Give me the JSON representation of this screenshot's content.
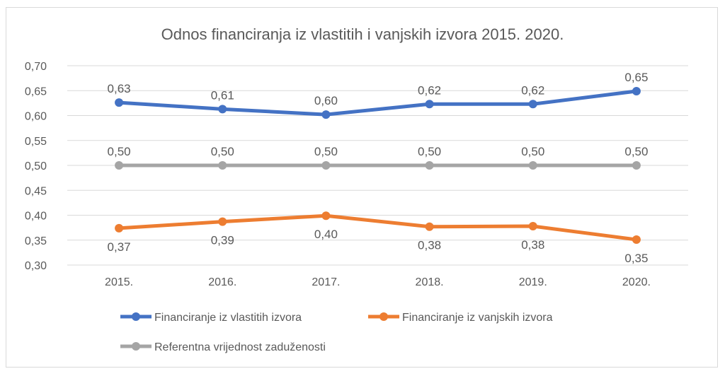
{
  "chart_data": {
    "type": "line",
    "title": "Odnos financiranja iz vlastitih i vanjskih izvora 2015. 2020.",
    "categories": [
      "2015.",
      "2016.",
      "2017.",
      "2018.",
      "2019.",
      "2020."
    ],
    "ylim": [
      0.3,
      0.7
    ],
    "yticks": [
      "0,30",
      "0,35",
      "0,40",
      "0,45",
      "0,50",
      "0,55",
      "0,60",
      "0,65",
      "0,70"
    ],
    "grid": true,
    "legend_position": "bottom",
    "series": [
      {
        "name": "Financiranje iz vlastitih izvora",
        "color": "#4472c4",
        "values": [
          0.626,
          0.613,
          0.602,
          0.623,
          0.623,
          0.649
        ],
        "labels": [
          "0,63",
          "0,61",
          "0,60",
          "0,62",
          "0,62",
          "0,65"
        ],
        "label_position": "above"
      },
      {
        "name": "Financiranje iz vanjskih izvora",
        "color": "#ed7d31",
        "values": [
          0.374,
          0.387,
          0.399,
          0.377,
          0.378,
          0.351
        ],
        "labels": [
          "0,37",
          "0,39",
          "0,40",
          "0,38",
          "0,38",
          "0,35"
        ],
        "label_position": "below"
      },
      {
        "name": "Referentna vrijednost zaduženosti",
        "color": "#a5a5a5",
        "values": [
          0.5,
          0.5,
          0.5,
          0.5,
          0.5,
          0.5
        ],
        "labels": [
          "0,50",
          "0,50",
          "0,50",
          "0,50",
          "0,50",
          "0,50"
        ],
        "label_position": "above"
      }
    ]
  }
}
